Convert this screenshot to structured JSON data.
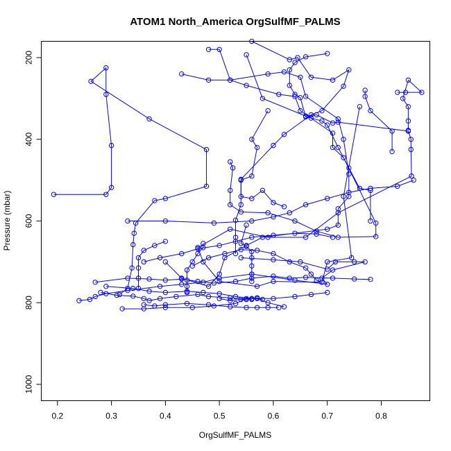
{
  "chart_data": {
    "type": "scatter",
    "title": "ATOM1 North_America OrgSulfMF_PALMS",
    "xlabel": "OrgSulfMF_PALMS",
    "ylabel": "Pressure (mbar)",
    "xlim": [
      0.17,
      0.89
    ],
    "ylim": [
      1040,
      160
    ],
    "y_reversed": true,
    "x_ticks": [
      0.2,
      0.3,
      0.4,
      0.5,
      0.6,
      0.7,
      0.8
    ],
    "x_tick_labels": [
      "0.2",
      "0.3",
      "0.4",
      "0.5",
      "0.6",
      "0.7",
      "0.8"
    ],
    "y_ticks": [
      200,
      400,
      600,
      800,
      1000
    ],
    "y_tick_labels": [
      "200",
      "400",
      "600",
      "800",
      "1000"
    ],
    "grid": false,
    "legend": "none",
    "color": "#0000ff",
    "series": [
      {
        "points": [
          [
            0.193,
            535
          ],
          [
            0.29,
            535
          ],
          [
            0.3,
            518
          ],
          [
            0.3,
            415
          ],
          [
            0.29,
            290
          ],
          [
            0.29,
            225
          ],
          [
            0.262,
            258
          ],
          [
            0.37,
            350
          ],
          [
            0.476,
            425
          ],
          [
            0.476,
            515
          ],
          [
            0.4,
            545
          ],
          [
            0.38,
            550
          ],
          [
            0.345,
            605
          ],
          [
            0.342,
            630
          ],
          [
            0.34,
            658
          ],
          [
            0.338,
            715
          ],
          [
            0.33,
            765
          ],
          [
            0.315,
            780
          ]
        ]
      },
      {
        "points": [
          [
            0.55,
            193
          ],
          [
            0.58,
            300
          ],
          [
            0.66,
            343
          ],
          [
            0.68,
            340
          ],
          [
            0.71,
            360
          ],
          [
            0.72,
            358
          ],
          [
            0.85,
            380
          ],
          [
            0.855,
            400
          ],
          [
            0.855,
            425
          ],
          [
            0.856,
            490
          ],
          [
            0.72,
            580
          ],
          [
            0.66,
            640
          ],
          [
            0.59,
            640
          ],
          [
            0.52,
            620
          ],
          [
            0.46,
            665
          ],
          [
            0.47,
            700
          ],
          [
            0.5,
            748
          ],
          [
            0.57,
            760
          ],
          [
            0.6,
            748
          ],
          [
            0.69,
            750
          ],
          [
            0.7,
            700
          ],
          [
            0.745,
            690
          ],
          [
            0.73,
            540
          ],
          [
            0.76,
            320
          ]
        ]
      },
      {
        "points": [
          [
            0.48,
            180
          ],
          [
            0.5,
            180
          ],
          [
            0.52,
            255
          ],
          [
            0.55,
            268
          ],
          [
            0.61,
            290
          ],
          [
            0.64,
            295
          ],
          [
            0.65,
            330
          ],
          [
            0.71,
            385
          ],
          [
            0.71,
            420
          ],
          [
            0.73,
            445
          ],
          [
            0.79,
            605
          ],
          [
            0.79,
            638
          ],
          [
            0.72,
            640
          ],
          [
            0.68,
            625
          ],
          [
            0.64,
            600
          ],
          [
            0.59,
            580
          ],
          [
            0.54,
            578
          ],
          [
            0.52,
            560
          ],
          [
            0.52,
            525
          ],
          [
            0.525,
            470
          ],
          [
            0.52,
            455
          ]
        ]
      },
      {
        "points": [
          [
            0.56,
            160
          ],
          [
            0.63,
            205
          ],
          [
            0.645,
            200
          ],
          [
            0.67,
            248
          ],
          [
            0.71,
            255
          ],
          [
            0.74,
            230
          ],
          [
            0.73,
            270
          ],
          [
            0.69,
            330
          ],
          [
            0.67,
            340
          ],
          [
            0.62,
            388
          ],
          [
            0.6,
            415
          ],
          [
            0.54,
            498
          ],
          [
            0.54,
            560
          ],
          [
            0.53,
            598
          ],
          [
            0.53,
            640
          ],
          [
            0.53,
            680
          ]
        ]
      },
      {
        "points": [
          [
            0.7,
            190
          ],
          [
            0.66,
            198
          ],
          [
            0.64,
            212
          ],
          [
            0.63,
            230
          ],
          [
            0.63,
            268
          ],
          [
            0.64,
            290
          ],
          [
            0.65,
            298
          ],
          [
            0.66,
            345
          ],
          [
            0.67,
            348
          ],
          [
            0.69,
            355
          ],
          [
            0.7,
            365
          ],
          [
            0.72,
            420
          ],
          [
            0.74,
            470
          ],
          [
            0.76,
            520
          ],
          [
            0.78,
            525
          ],
          [
            0.78,
            600
          ]
        ]
      },
      {
        "points": [
          [
            0.43,
            240
          ],
          [
            0.48,
            255
          ],
          [
            0.52,
            255
          ],
          [
            0.59,
            240
          ],
          [
            0.62,
            235
          ],
          [
            0.65,
            248
          ],
          [
            0.66,
            295
          ],
          [
            0.72,
            350
          ],
          [
            0.73,
            400
          ],
          [
            0.74,
            485
          ],
          [
            0.74,
            540
          ],
          [
            0.72,
            570
          ],
          [
            0.72,
            610
          ],
          [
            0.7,
            620
          ],
          [
            0.58,
            640
          ],
          [
            0.55,
            660
          ],
          [
            0.51,
            690
          ],
          [
            0.5,
            730
          ],
          [
            0.48,
            760
          ],
          [
            0.43,
            740
          ],
          [
            0.4,
            700
          ]
        ]
      },
      {
        "points": [
          [
            0.54,
            690
          ],
          [
            0.6,
            695
          ],
          [
            0.65,
            700
          ],
          [
            0.7,
            718
          ],
          [
            0.715,
            700
          ],
          [
            0.75,
            700
          ],
          [
            0.77,
            700
          ],
          [
            0.71,
            720
          ],
          [
            0.69,
            740
          ],
          [
            0.7,
            755
          ],
          [
            0.64,
            745
          ],
          [
            0.56,
            730
          ],
          [
            0.5,
            740
          ],
          [
            0.47,
            750
          ],
          [
            0.43,
            755
          ],
          [
            0.39,
            760
          ],
          [
            0.33,
            770
          ],
          [
            0.29,
            778
          ],
          [
            0.27,
            785
          ],
          [
            0.26,
            792
          ],
          [
            0.24,
            795
          ]
        ]
      },
      {
        "points": [
          [
            0.27,
            750
          ],
          [
            0.33,
            740
          ],
          [
            0.37,
            742
          ],
          [
            0.4,
            745
          ],
          [
            0.43,
            742
          ],
          [
            0.46,
            748
          ],
          [
            0.49,
            752
          ],
          [
            0.53,
            748
          ],
          [
            0.56,
            740
          ],
          [
            0.6,
            735
          ],
          [
            0.63,
            740
          ],
          [
            0.66,
            738
          ],
          [
            0.71,
            740
          ],
          [
            0.75,
            742
          ],
          [
            0.78,
            743
          ]
        ]
      },
      {
        "points": [
          [
            0.29,
            760
          ],
          [
            0.34,
            765
          ],
          [
            0.37,
            772
          ],
          [
            0.4,
            775
          ],
          [
            0.44,
            772
          ],
          [
            0.47,
            775
          ],
          [
            0.5,
            778
          ],
          [
            0.53,
            785
          ],
          [
            0.56,
            790
          ],
          [
            0.6,
            790
          ],
          [
            0.64,
            785
          ],
          [
            0.67,
            780
          ],
          [
            0.7,
            775
          ]
        ]
      },
      {
        "points": [
          [
            0.36,
            805
          ],
          [
            0.38,
            808
          ],
          [
            0.4,
            805
          ],
          [
            0.44,
            802
          ],
          [
            0.48,
            805
          ],
          [
            0.52,
            810
          ],
          [
            0.55,
            812
          ],
          [
            0.57,
            812
          ],
          [
            0.59,
            812
          ],
          [
            0.61,
            812
          ]
        ]
      },
      {
        "points": [
          [
            0.32,
            815
          ],
          [
            0.36,
            815
          ],
          [
            0.4,
            812
          ],
          [
            0.45,
            812
          ],
          [
            0.49,
            808
          ],
          [
            0.53,
            802
          ],
          [
            0.55,
            790
          ],
          [
            0.57,
            790
          ],
          [
            0.59,
            800
          ],
          [
            0.62,
            810
          ]
        ]
      },
      {
        "points": [
          [
            0.5,
            790
          ],
          [
            0.52,
            795
          ],
          [
            0.54,
            792
          ],
          [
            0.55,
            792
          ],
          [
            0.56,
            790
          ],
          [
            0.57,
            788
          ],
          [
            0.58,
            792
          ]
        ]
      },
      {
        "points": [
          [
            0.28,
            775
          ],
          [
            0.31,
            782
          ],
          [
            0.34,
            784
          ],
          [
            0.36,
            790
          ],
          [
            0.37,
            795
          ],
          [
            0.39,
            790
          ],
          [
            0.42,
            785
          ],
          [
            0.46,
            780
          ],
          [
            0.48,
            785
          ],
          [
            0.52,
            788
          ],
          [
            0.56,
            792
          ]
        ]
      },
      {
        "points": [
          [
            0.36,
            700
          ],
          [
            0.39,
            690
          ],
          [
            0.43,
            680
          ],
          [
            0.46,
            668
          ],
          [
            0.5,
            660
          ],
          [
            0.53,
            650
          ],
          [
            0.56,
            640
          ],
          [
            0.6,
            635
          ],
          [
            0.64,
            630
          ],
          [
            0.68,
            632
          ],
          [
            0.71,
            640
          ]
        ]
      },
      {
        "points": [
          [
            0.83,
            285
          ],
          [
            0.845,
            285
          ],
          [
            0.875,
            285
          ],
          [
            0.85,
            255
          ],
          [
            0.84,
            300
          ],
          [
            0.85,
            320
          ],
          [
            0.85,
            355
          ],
          [
            0.85,
            378
          ]
        ]
      },
      {
        "points": [
          [
            0.82,
            430
          ],
          [
            0.82,
            380
          ],
          [
            0.78,
            330
          ],
          [
            0.77,
            295
          ],
          [
            0.77,
            280
          ]
        ]
      },
      {
        "points": [
          [
            0.59,
            330
          ],
          [
            0.56,
            400
          ],
          [
            0.57,
            420
          ],
          [
            0.56,
            490
          ],
          [
            0.54,
            500
          ],
          [
            0.54,
            540
          ],
          [
            0.56,
            545
          ],
          [
            0.58,
            525
          ],
          [
            0.6,
            555
          ],
          [
            0.62,
            565
          ]
        ]
      },
      {
        "points": [
          [
            0.33,
            600
          ],
          [
            0.4,
            600
          ],
          [
            0.49,
            605
          ],
          [
            0.56,
            600
          ],
          [
            0.6,
            590
          ],
          [
            0.63,
            580
          ],
          [
            0.66,
            560
          ],
          [
            0.7,
            545
          ],
          [
            0.74,
            530
          ],
          [
            0.78,
            520
          ],
          [
            0.83,
            515
          ],
          [
            0.86,
            500
          ]
        ]
      },
      {
        "points": [
          [
            0.45,
            710
          ],
          [
            0.48,
            690
          ],
          [
            0.51,
            680
          ],
          [
            0.54,
            670
          ],
          [
            0.57,
            672
          ],
          [
            0.6,
            680
          ],
          [
            0.63,
            700
          ],
          [
            0.66,
            715
          ],
          [
            0.67,
            730
          ],
          [
            0.68,
            745
          ],
          [
            0.69,
            750
          ]
        ]
      },
      {
        "points": [
          [
            0.55,
            610
          ],
          [
            0.54,
            655
          ],
          [
            0.55,
            662
          ],
          [
            0.56,
            675
          ],
          [
            0.56,
            690
          ],
          [
            0.56,
            710
          ],
          [
            0.56,
            730
          ],
          [
            0.56,
            748
          ]
        ]
      },
      {
        "points": [
          [
            0.47,
            655
          ],
          [
            0.47,
            665
          ],
          [
            0.46,
            680
          ],
          [
            0.45,
            700
          ],
          [
            0.44,
            720
          ],
          [
            0.44,
            745
          ],
          [
            0.44,
            760
          ],
          [
            0.44,
            775
          ]
        ]
      },
      {
        "points": [
          [
            0.4,
            650
          ],
          [
            0.38,
            660
          ],
          [
            0.36,
            672
          ],
          [
            0.35,
            690
          ],
          [
            0.35,
            715
          ],
          [
            0.35,
            740
          ],
          [
            0.35,
            765
          ]
        ]
      }
    ]
  }
}
